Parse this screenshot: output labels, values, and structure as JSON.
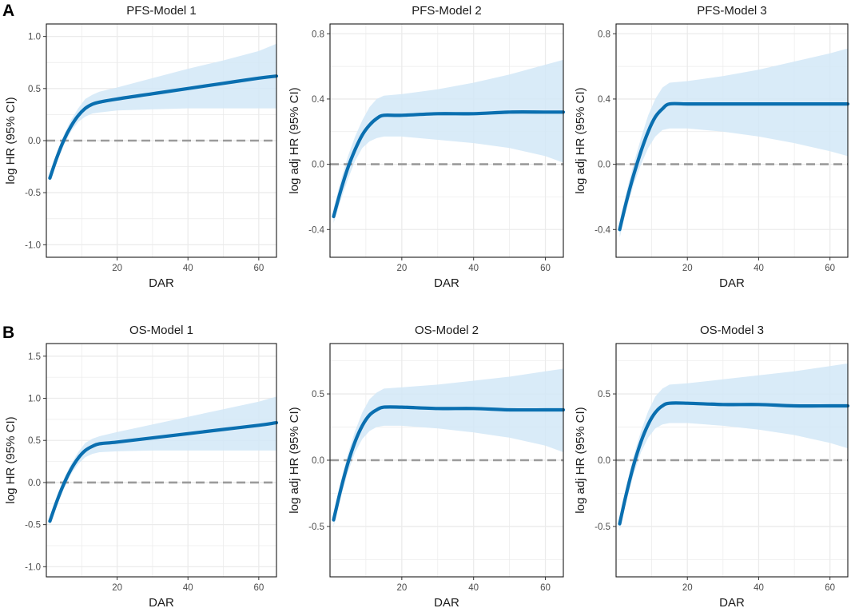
{
  "panel_labels": [
    "A",
    "B"
  ],
  "chart_data": [
    {
      "type": "line",
      "title": "PFS-Model 1",
      "xlabel": "DAR",
      "ylabel": "log HR (95% CI)",
      "xlim": [
        0,
        65
      ],
      "ylim": [
        -1.12,
        1.12
      ],
      "xticks": [
        20,
        40,
        60
      ],
      "yticks": [
        -1.0,
        -0.5,
        0.0,
        0.5,
        1.0
      ],
      "ytick_labels": [
        "-1.0",
        "-0.5",
        "0.0",
        "0.5",
        "1.0"
      ],
      "reference_line": 0,
      "series": [
        {
          "name": "log HR",
          "x": [
            1,
            3,
            5,
            7,
            9,
            11,
            13,
            15,
            20,
            30,
            40,
            50,
            60,
            65
          ],
          "values": [
            -0.36,
            -0.16,
            0.01,
            0.14,
            0.24,
            0.31,
            0.35,
            0.37,
            0.4,
            0.45,
            0.5,
            0.55,
            0.6,
            0.62
          ]
        },
        {
          "name": "lower 95% CI",
          "x": [
            1,
            3,
            5,
            7,
            9,
            11,
            13,
            15,
            20,
            30,
            40,
            50,
            60,
            65
          ],
          "values": [
            -0.4,
            -0.2,
            -0.04,
            0.09,
            0.18,
            0.23,
            0.26,
            0.27,
            0.29,
            0.3,
            0.31,
            0.31,
            0.31,
            0.31
          ]
        },
        {
          "name": "upper 95% CI",
          "x": [
            1,
            3,
            5,
            7,
            9,
            11,
            13,
            15,
            20,
            30,
            40,
            50,
            60,
            65
          ],
          "values": [
            -0.32,
            -0.12,
            0.06,
            0.2,
            0.31,
            0.4,
            0.44,
            0.47,
            0.51,
            0.6,
            0.69,
            0.77,
            0.86,
            0.93
          ]
        }
      ]
    },
    {
      "type": "line",
      "title": "PFS-Model 2",
      "xlabel": "DAR",
      "ylabel": "log adj HR (95% CI)",
      "xlim": [
        0,
        65
      ],
      "ylim": [
        -0.57,
        0.86
      ],
      "xticks": [
        20,
        40,
        60
      ],
      "yticks": [
        -0.4,
        0.0,
        0.4,
        0.8
      ],
      "ytick_labels": [
        "-0.4",
        "0.0",
        "0.4",
        "0.8"
      ],
      "reference_line": 0,
      "series": [
        {
          "name": "log adj HR",
          "x": [
            1,
            3,
            5,
            7,
            9,
            11,
            13,
            15,
            20,
            30,
            40,
            50,
            60,
            65
          ],
          "values": [
            -0.32,
            -0.16,
            -0.02,
            0.09,
            0.18,
            0.24,
            0.28,
            0.3,
            0.3,
            0.31,
            0.31,
            0.32,
            0.32,
            0.32
          ]
        },
        {
          "name": "lower 95% CI",
          "x": [
            1,
            3,
            5,
            7,
            9,
            11,
            13,
            15,
            20,
            30,
            40,
            50,
            60,
            65
          ],
          "values": [
            -0.36,
            -0.22,
            -0.09,
            0.02,
            0.1,
            0.14,
            0.16,
            0.17,
            0.17,
            0.15,
            0.13,
            0.1,
            0.05,
            0.01
          ]
        },
        {
          "name": "upper 95% CI",
          "x": [
            1,
            3,
            5,
            7,
            9,
            11,
            13,
            15,
            20,
            30,
            40,
            50,
            60,
            65
          ],
          "values": [
            -0.27,
            -0.1,
            0.05,
            0.17,
            0.27,
            0.35,
            0.4,
            0.42,
            0.43,
            0.46,
            0.5,
            0.55,
            0.61,
            0.64
          ]
        }
      ]
    },
    {
      "type": "line",
      "title": "PFS-Model 3",
      "xlabel": "DAR",
      "ylabel": "log adj HR (95% CI)",
      "xlim": [
        0,
        65
      ],
      "ylim": [
        -0.57,
        0.86
      ],
      "xticks": [
        20,
        40,
        60
      ],
      "yticks": [
        -0.4,
        0.0,
        0.4,
        0.8
      ],
      "ytick_labels": [
        "-0.4",
        "0.0",
        "0.4",
        "0.8"
      ],
      "reference_line": 0,
      "series": [
        {
          "name": "log adj HR",
          "x": [
            1,
            3,
            5,
            7,
            9,
            11,
            13,
            15,
            20,
            30,
            40,
            50,
            60,
            65
          ],
          "values": [
            -0.4,
            -0.22,
            -0.06,
            0.08,
            0.2,
            0.29,
            0.34,
            0.37,
            0.37,
            0.37,
            0.37,
            0.37,
            0.37,
            0.37
          ]
        },
        {
          "name": "lower 95% CI",
          "x": [
            1,
            3,
            5,
            7,
            9,
            11,
            13,
            15,
            20,
            30,
            40,
            50,
            60,
            65
          ],
          "values": [
            -0.45,
            -0.27,
            -0.12,
            0.0,
            0.1,
            0.17,
            0.21,
            0.22,
            0.22,
            0.2,
            0.17,
            0.13,
            0.08,
            0.05
          ]
        },
        {
          "name": "upper 95% CI",
          "x": [
            1,
            3,
            5,
            7,
            9,
            11,
            13,
            15,
            20,
            30,
            40,
            50,
            60,
            65
          ],
          "values": [
            -0.35,
            -0.16,
            0.01,
            0.16,
            0.3,
            0.4,
            0.47,
            0.5,
            0.51,
            0.54,
            0.58,
            0.63,
            0.68,
            0.71
          ]
        }
      ]
    },
    {
      "type": "line",
      "title": "OS-Model 1",
      "xlabel": "DAR",
      "ylabel": "log HR (95% CI)",
      "xlim": [
        0,
        65
      ],
      "ylim": [
        -1.12,
        1.65
      ],
      "xticks": [
        20,
        40,
        60
      ],
      "yticks": [
        -1.0,
        -0.5,
        0.0,
        0.5,
        1.0,
        1.5
      ],
      "ytick_labels": [
        "-1.0",
        "-0.5",
        "0.0",
        "0.5",
        "1.0",
        "1.5"
      ],
      "reference_line": 0,
      "series": [
        {
          "name": "log HR",
          "x": [
            1,
            3,
            5,
            7,
            9,
            11,
            13,
            15,
            20,
            30,
            40,
            50,
            60,
            65
          ],
          "values": [
            -0.46,
            -0.22,
            -0.01,
            0.16,
            0.29,
            0.38,
            0.43,
            0.46,
            0.48,
            0.53,
            0.58,
            0.63,
            0.68,
            0.71
          ]
        },
        {
          "name": "lower 95% CI",
          "x": [
            1,
            3,
            5,
            7,
            9,
            11,
            13,
            15,
            20,
            30,
            40,
            50,
            60,
            65
          ],
          "values": [
            -0.5,
            -0.27,
            -0.07,
            0.1,
            0.22,
            0.3,
            0.34,
            0.36,
            0.37,
            0.38,
            0.38,
            0.38,
            0.38,
            0.38
          ]
        },
        {
          "name": "upper 95% CI",
          "x": [
            1,
            3,
            5,
            7,
            9,
            11,
            13,
            15,
            20,
            30,
            40,
            50,
            60,
            65
          ],
          "values": [
            -0.42,
            -0.17,
            0.05,
            0.22,
            0.36,
            0.47,
            0.52,
            0.55,
            0.6,
            0.69,
            0.78,
            0.87,
            0.96,
            1.02
          ]
        }
      ]
    },
    {
      "type": "line",
      "title": "OS-Model 2",
      "xlabel": "DAR",
      "ylabel": "log adj HR (95% CI)",
      "xlim": [
        0,
        65
      ],
      "ylim": [
        -0.88,
        0.88
      ],
      "xticks": [
        20,
        40,
        60
      ],
      "yticks": [
        -0.5,
        0.0,
        0.5
      ],
      "ytick_labels": [
        "-0.5",
        "0.0",
        "0.5"
      ],
      "reference_line": 0,
      "series": [
        {
          "name": "log adj HR",
          "x": [
            1,
            3,
            5,
            7,
            9,
            11,
            13,
            15,
            20,
            30,
            40,
            50,
            60,
            65
          ],
          "values": [
            -0.45,
            -0.22,
            -0.02,
            0.14,
            0.26,
            0.34,
            0.38,
            0.4,
            0.4,
            0.39,
            0.39,
            0.38,
            0.38,
            0.38
          ]
        },
        {
          "name": "lower 95% CI",
          "x": [
            1,
            3,
            5,
            7,
            9,
            11,
            13,
            15,
            20,
            30,
            40,
            50,
            60,
            65
          ],
          "values": [
            -0.5,
            -0.28,
            -0.09,
            0.06,
            0.16,
            0.22,
            0.25,
            0.26,
            0.26,
            0.24,
            0.21,
            0.17,
            0.11,
            0.06
          ]
        },
        {
          "name": "upper 95% CI",
          "x": [
            1,
            3,
            5,
            7,
            9,
            11,
            13,
            15,
            20,
            30,
            40,
            50,
            60,
            65
          ],
          "values": [
            -0.4,
            -0.16,
            0.05,
            0.22,
            0.36,
            0.46,
            0.51,
            0.54,
            0.55,
            0.57,
            0.6,
            0.63,
            0.67,
            0.69
          ]
        }
      ]
    },
    {
      "type": "line",
      "title": "OS-Model 3",
      "xlabel": "DAR",
      "ylabel": "log adj HR (95% CI)",
      "xlim": [
        0,
        65
      ],
      "ylim": [
        -0.88,
        0.88
      ],
      "xticks": [
        20,
        40,
        60
      ],
      "yticks": [
        -0.5,
        0.0,
        0.5
      ],
      "ytick_labels": [
        "-0.5",
        "0.0",
        "0.5"
      ],
      "reference_line": 0,
      "series": [
        {
          "name": "log adj HR",
          "x": [
            1,
            3,
            5,
            7,
            9,
            11,
            13,
            15,
            20,
            30,
            40,
            50,
            60,
            65
          ],
          "values": [
            -0.48,
            -0.24,
            -0.03,
            0.14,
            0.27,
            0.36,
            0.41,
            0.43,
            0.43,
            0.42,
            0.42,
            0.41,
            0.41,
            0.41
          ]
        },
        {
          "name": "lower 95% CI",
          "x": [
            1,
            3,
            5,
            7,
            9,
            11,
            13,
            15,
            20,
            30,
            40,
            50,
            60,
            65
          ],
          "values": [
            -0.53,
            -0.3,
            -0.1,
            0.06,
            0.17,
            0.24,
            0.27,
            0.28,
            0.28,
            0.26,
            0.23,
            0.19,
            0.13,
            0.09
          ]
        },
        {
          "name": "upper 95% CI",
          "x": [
            1,
            3,
            5,
            7,
            9,
            11,
            13,
            15,
            20,
            30,
            40,
            50,
            60,
            65
          ],
          "values": [
            -0.43,
            -0.18,
            0.04,
            0.22,
            0.37,
            0.48,
            0.54,
            0.57,
            0.58,
            0.61,
            0.64,
            0.67,
            0.71,
            0.73
          ]
        }
      ]
    }
  ],
  "colors": {
    "line": "#0a6fb0",
    "band": "#d2e8f7",
    "reference": "#9b9b9b",
    "grid": "#ebebeb",
    "frame": "#1a1a1a"
  }
}
